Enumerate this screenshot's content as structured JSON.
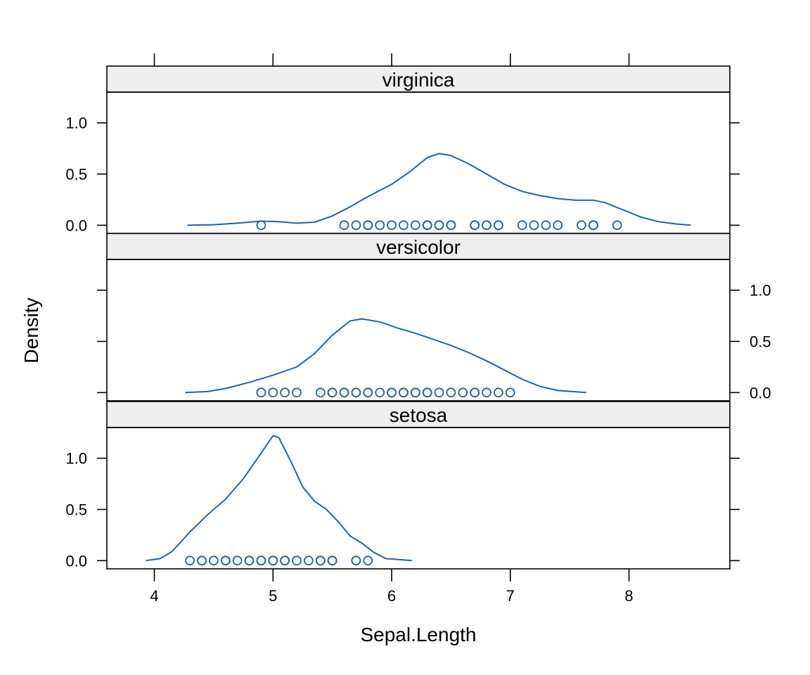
{
  "chart_data": {
    "type": "density",
    "xlabel": "Sepal.Length",
    "ylabel": "Density",
    "xlim": [
      3.6,
      8.85
    ],
    "ylim": [
      -0.08,
      1.3
    ],
    "x_ticks": [
      4,
      5,
      6,
      7,
      8
    ],
    "y_ticks": [
      0.0,
      0.5,
      1.0
    ],
    "y_tick_labels": [
      "0.0",
      "0.5",
      "1.0"
    ],
    "colors": {
      "line": "#1f64a8",
      "points": "#1f64a8",
      "strip_bg": "#efefef",
      "frame": "#000000"
    },
    "panels": [
      {
        "name": "virginica",
        "curve": [
          [
            4.28,
            0.0
          ],
          [
            4.5,
            0.005
          ],
          [
            4.7,
            0.02
          ],
          [
            4.9,
            0.04
          ],
          [
            5.05,
            0.035
          ],
          [
            5.2,
            0.02
          ],
          [
            5.35,
            0.03
          ],
          [
            5.5,
            0.09
          ],
          [
            5.65,
            0.18
          ],
          [
            5.8,
            0.28
          ],
          [
            6.0,
            0.4
          ],
          [
            6.15,
            0.52
          ],
          [
            6.3,
            0.66
          ],
          [
            6.4,
            0.7
          ],
          [
            6.5,
            0.68
          ],
          [
            6.65,
            0.6
          ],
          [
            6.8,
            0.5
          ],
          [
            6.95,
            0.4
          ],
          [
            7.1,
            0.33
          ],
          [
            7.25,
            0.29
          ],
          [
            7.4,
            0.26
          ],
          [
            7.55,
            0.245
          ],
          [
            7.7,
            0.245
          ],
          [
            7.8,
            0.22
          ],
          [
            7.95,
            0.15
          ],
          [
            8.1,
            0.08
          ],
          [
            8.25,
            0.035
          ],
          [
            8.4,
            0.012
          ],
          [
            8.52,
            0.002
          ]
        ],
        "points": [
          4.9,
          5.6,
          5.7,
          5.8,
          5.8,
          5.9,
          6.0,
          6.1,
          6.2,
          6.3,
          6.3,
          6.3,
          6.4,
          6.4,
          6.5,
          6.5,
          6.7,
          6.7,
          6.7,
          6.8,
          6.8,
          6.9,
          6.9,
          7.1,
          7.2,
          7.3,
          7.4,
          7.6,
          7.7,
          7.7,
          7.7,
          7.9
        ]
      },
      {
        "name": "versicolor",
        "curve": [
          [
            4.26,
            0.0
          ],
          [
            4.45,
            0.01
          ],
          [
            4.6,
            0.04
          ],
          [
            4.8,
            0.1
          ],
          [
            5.0,
            0.17
          ],
          [
            5.2,
            0.25
          ],
          [
            5.35,
            0.38
          ],
          [
            5.5,
            0.56
          ],
          [
            5.65,
            0.7
          ],
          [
            5.75,
            0.72
          ],
          [
            5.9,
            0.69
          ],
          [
            6.05,
            0.63
          ],
          [
            6.2,
            0.58
          ],
          [
            6.35,
            0.52
          ],
          [
            6.5,
            0.46
          ],
          [
            6.65,
            0.39
          ],
          [
            6.8,
            0.31
          ],
          [
            6.95,
            0.22
          ],
          [
            7.1,
            0.13
          ],
          [
            7.25,
            0.06
          ],
          [
            7.4,
            0.02
          ],
          [
            7.64,
            0.0
          ]
        ],
        "points": [
          4.9,
          5.0,
          5.1,
          5.2,
          5.4,
          5.5,
          5.5,
          5.6,
          5.6,
          5.7,
          5.7,
          5.8,
          5.8,
          5.9,
          6.0,
          6.0,
          6.1,
          6.1,
          6.2,
          6.2,
          6.3,
          6.3,
          6.4,
          6.5,
          6.6,
          6.7,
          6.7,
          6.8,
          6.9,
          7.0
        ]
      },
      {
        "name": "setosa",
        "curve": [
          [
            3.93,
            0.0
          ],
          [
            4.05,
            0.02
          ],
          [
            4.15,
            0.09
          ],
          [
            4.3,
            0.28
          ],
          [
            4.45,
            0.45
          ],
          [
            4.6,
            0.6
          ],
          [
            4.75,
            0.8
          ],
          [
            4.9,
            1.05
          ],
          [
            5.0,
            1.22
          ],
          [
            5.05,
            1.2
          ],
          [
            5.15,
            0.97
          ],
          [
            5.25,
            0.72
          ],
          [
            5.35,
            0.58
          ],
          [
            5.45,
            0.5
          ],
          [
            5.55,
            0.38
          ],
          [
            5.65,
            0.24
          ],
          [
            5.75,
            0.17
          ],
          [
            5.85,
            0.08
          ],
          [
            5.95,
            0.02
          ],
          [
            6.17,
            0.0
          ]
        ],
        "points": [
          4.3,
          4.4,
          4.4,
          4.5,
          4.6,
          4.6,
          4.7,
          4.8,
          4.8,
          4.9,
          4.9,
          5.0,
          5.0,
          5.1,
          5.1,
          5.2,
          5.3,
          5.4,
          5.4,
          5.5,
          5.5,
          5.7,
          5.7,
          5.8
        ]
      }
    ]
  }
}
